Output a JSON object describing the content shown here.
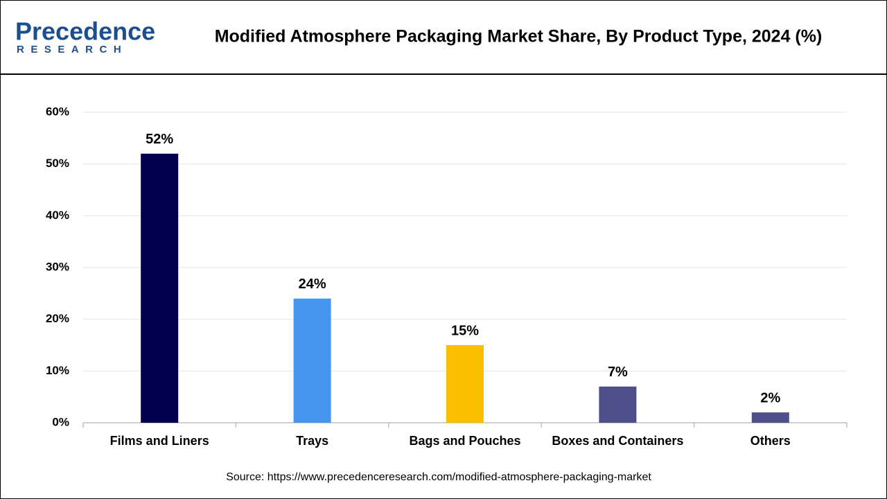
{
  "logo": {
    "name": "Precedence",
    "sub": "RESEARCH"
  },
  "chart_data": {
    "type": "bar",
    "title": "Modified Atmosphere Packaging Market Share, By Product Type, 2024 (%)",
    "categories": [
      "Films and Liners",
      "Trays",
      "Bags and Pouches",
      "Boxes and Containers",
      "Others"
    ],
    "values": [
      52,
      24,
      15,
      7,
      2
    ],
    "value_labels": [
      "52%",
      "24%",
      "15%",
      "7%",
      "2%"
    ],
    "colors": [
      "#00004f",
      "#4796ee",
      "#fcbf00",
      "#4d4f89",
      "#4d4f89"
    ],
    "ylim": [
      0,
      60
    ],
    "yticks": [
      {
        "value": 0,
        "label": "0%"
      },
      {
        "value": 10,
        "label": "10%"
      },
      {
        "value": 20,
        "label": "20%"
      },
      {
        "value": 30,
        "label": "30%"
      },
      {
        "value": 40,
        "label": "40%"
      },
      {
        "value": 50,
        "label": "50%"
      },
      {
        "value": 60,
        "label": "60%"
      }
    ],
    "grid": true,
    "source": "Source: https://www.precedenceresearch.com/modified-atmosphere-packaging-market"
  }
}
